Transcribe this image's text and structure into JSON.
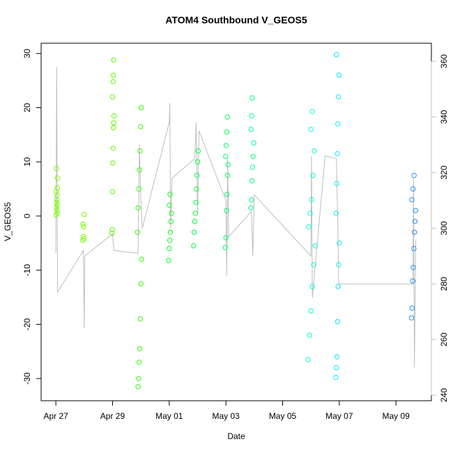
{
  "chart_data": {
    "type": "scatter",
    "title": "ATOM4 Southbound V_GEOS5",
    "x_label": "Date",
    "y_label": "V_GEOS5",
    "xlim": [
      -0.52,
      13.25
    ],
    "ylim": [
      -34.1,
      31.9
    ],
    "y2lim": [
      238,
      366.5
    ],
    "xticks": [
      {
        "value": 0,
        "label": "Apr 27"
      },
      {
        "value": 2,
        "label": "Apr 29"
      },
      {
        "value": 4,
        "label": "May 01"
      },
      {
        "value": 6,
        "label": "May 03"
      },
      {
        "value": 8,
        "label": "May 05"
      },
      {
        "value": 10,
        "label": "May 07"
      },
      {
        "value": 12,
        "label": "May 09"
      }
    ],
    "yticks": [
      -30,
      -20,
      -10,
      0,
      10,
      20,
      30
    ],
    "y2ticks": [
      240,
      260,
      280,
      300,
      320,
      340,
      360
    ],
    "y2color": "#bebebe",
    "series": [
      {
        "type": "line",
        "axis": "y2",
        "color": "#bebebe",
        "x": [
          0.0,
          0.03,
          0.06,
          0.97,
          1.0,
          1.02,
          2.0,
          2.05,
          2.9,
          2.95,
          3.0,
          3.05,
          4.0,
          4.02,
          4.05,
          4.1,
          4.9,
          4.95,
          5.0,
          5.05,
          6.0,
          6.03,
          6.06,
          6.1,
          6.9,
          6.95,
          7.0,
          9.0,
          9.02,
          9.05,
          9.5,
          9.9,
          9.95,
          9.98,
          12.6,
          12.62,
          12.65,
          12.7
        ],
        "values": [
          291,
          358,
          277,
          292,
          264,
          290,
          298,
          292,
          291,
          330,
          310,
          300,
          338,
          345,
          300,
          318,
          325,
          338,
          305,
          335,
          310,
          283,
          325,
          297,
          306,
          290,
          312,
          290,
          326,
          275,
          326,
          325,
          300,
          280,
          280,
          318,
          250,
          296
        ]
      },
      {
        "color": "#7cfc00",
        "x": [
          0.0,
          0.02,
          0.03,
          0.04,
          0.05,
          0.06,
          0.02,
          0.04,
          0.05,
          0.03,
          0.01,
          0.06
        ],
        "values": [
          0.2,
          1.5,
          2.5,
          3.8,
          5.2,
          7.0,
          8.8,
          1.0,
          2.0,
          3.0,
          4.5,
          0.5
        ]
      },
      {
        "color": "#76ff00",
        "x": [
          0.95,
          0.97,
          0.98,
          1.0,
          0.96,
          0.99
        ],
        "values": [
          -4.5,
          -3.8,
          -2.0,
          0.3,
          -1.5,
          -4.2
        ]
      },
      {
        "color": "#5cff00",
        "x": [
          1.98,
          1.99,
          2.0,
          2.01,
          2.02,
          2.03,
          2.04,
          2.05,
          2.0,
          2.02,
          2.03,
          2.04
        ],
        "values": [
          -3.2,
          -2.5,
          4.5,
          9.8,
          12.5,
          16.3,
          17.2,
          18.5,
          22.0,
          24.8,
          26.0,
          28.8
        ]
      },
      {
        "color": "#33ff00",
        "x": [
          2.9,
          2.92,
          2.94,
          2.96,
          2.98,
          3.0,
          3.02,
          2.88,
          2.9,
          2.93,
          2.95,
          2.97,
          2.99,
          3.01
        ],
        "values": [
          -31.5,
          -30.0,
          -27.0,
          -24.5,
          -19.0,
          -12.5,
          -8.0,
          -3.0,
          1.5,
          5.0,
          8.5,
          12.0,
          16.5,
          20.0
        ]
      },
      {
        "color": "#0dff1a",
        "x": [
          3.98,
          4.0,
          4.02,
          4.04,
          4.06,
          4.08,
          4.0,
          4.03
        ],
        "values": [
          -8.2,
          -6.0,
          -4.5,
          -3.0,
          -1.0,
          0.5,
          2.0,
          4.0
        ]
      },
      {
        "color": "#00ff38",
        "x": [
          4.86,
          4.88,
          4.9,
          4.92,
          4.94,
          4.96,
          4.98,
          5.0,
          5.02
        ],
        "values": [
          -5.5,
          -3.0,
          -1.0,
          0.5,
          2.5,
          5.0,
          7.5,
          10.0,
          12.0
        ]
      },
      {
        "color": "#00ff6a",
        "x": [
          5.98,
          6.0,
          6.02,
          6.04,
          6.06,
          6.08,
          5.99,
          6.01,
          6.03,
          6.05
        ],
        "values": [
          -5.8,
          -4.0,
          1.0,
          4.0,
          7.5,
          9.5,
          11.0,
          13.0,
          15.5,
          18.3
        ]
      },
      {
        "color": "#00ff8f",
        "x": [
          6.88,
          6.9,
          6.92,
          6.94,
          6.96,
          6.98,
          6.89,
          6.91,
          6.93
        ],
        "values": [
          1.5,
          3.0,
          6.5,
          9.0,
          11.0,
          13.5,
          16.0,
          18.5,
          21.8
        ]
      },
      {
        "color": "#00ffd9",
        "x": [
          8.9,
          8.95,
          9.0,
          9.05,
          9.1,
          9.15,
          8.92,
          8.97,
          9.02,
          9.07,
          9.12,
          9.0,
          9.05
        ],
        "values": [
          -26.5,
          -22.0,
          -17.5,
          -13.0,
          -9.0,
          -5.5,
          -2.0,
          0.5,
          3.0,
          7.5,
          12.0,
          16.0,
          19.3
        ]
      },
      {
        "color": "#00eeff",
        "x": [
          9.88,
          9.9,
          9.92,
          9.94,
          9.96,
          9.98,
          10.0,
          9.89,
          9.91,
          9.93,
          9.95,
          9.97,
          9.99,
          9.9
        ],
        "values": [
          -29.8,
          -28.0,
          -26.0,
          -19.5,
          -13.0,
          -9.0,
          -5.0,
          0.5,
          6.0,
          11.5,
          17.0,
          22.0,
          26.0,
          29.8
        ]
      },
      {
        "color": "#1e90ff",
        "x": [
          12.55,
          12.57,
          12.59,
          12.61,
          12.63,
          12.65,
          12.67,
          12.69,
          12.56,
          12.6,
          12.64
        ],
        "values": [
          -18.8,
          -17.0,
          -12.0,
          -9.5,
          -6.0,
          -3.0,
          -1.0,
          1.0,
          3.0,
          5.0,
          7.5
        ]
      }
    ]
  }
}
